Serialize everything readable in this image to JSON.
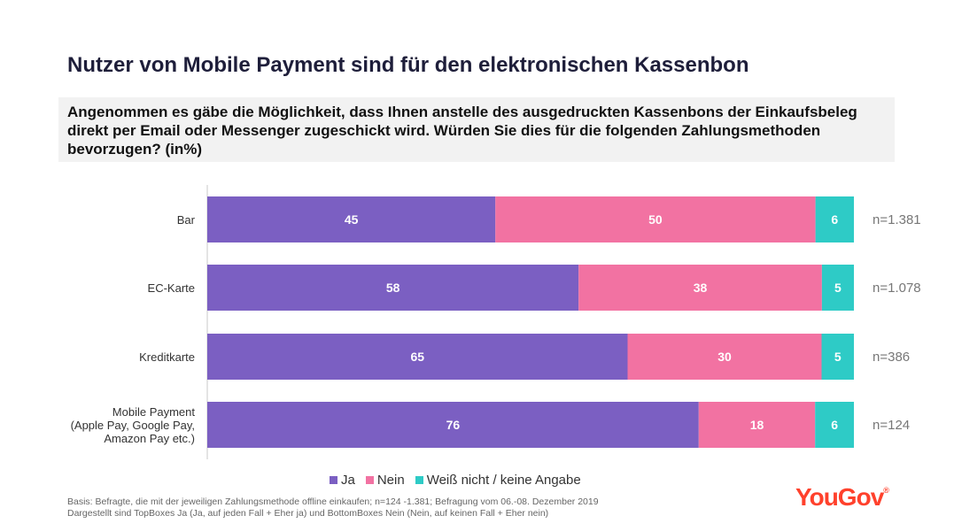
{
  "title": "Nutzer von Mobile Payment sind für den elektronischen Kassenbon",
  "question": "Angenommen es gäbe die Möglichkeit, dass Ihnen anstelle des ausgedruckten Kassenbons der Einkaufsbeleg direkt per Email oder Messenger zugeschickt wird. Würden Sie dies für die folgenden Zahlungsmethoden bevorzugen? (in%)",
  "chart_data": {
    "type": "bar",
    "orientation": "horizontal",
    "stacked": true,
    "categories": [
      [
        "Bar"
      ],
      [
        "EC-Karte"
      ],
      [
        "Kreditkarte"
      ],
      [
        "Mobile Payment",
        "(Apple Pay, Google Pay,",
        "Amazon Pay etc.)"
      ]
    ],
    "series": [
      {
        "name": "Ja",
        "color": "#7b5fc2",
        "values": [
          45,
          58,
          65,
          76
        ]
      },
      {
        "name": "Nein",
        "color": "#f272a2",
        "values": [
          50,
          38,
          30,
          18
        ]
      },
      {
        "name": "Weiß nicht / keine Angabe",
        "color": "#2ecbc6",
        "values": [
          6,
          5,
          5,
          6
        ]
      }
    ],
    "sample_sizes": [
      "n=1.381",
      "n=1.078",
      "n=386",
      "n=124"
    ],
    "xlim": [
      0,
      100
    ],
    "grid": false,
    "legend_position": "bottom"
  },
  "legend": {
    "ja": "Ja",
    "nein": "Nein",
    "weiss_nicht": "Weiß nicht / keine Angabe"
  },
  "footnote": {
    "line1": "Basis: Befragte, die mit der jeweiligen Zahlungsmethode offline einkaufen; n=124 -1.381; Befragung vom 06.-08. Dezember 2019",
    "line2": "Dargestellt sind TopBoxes Ja (Ja, auf jeden Fall + Eher ja) und BottomBoxes Nein (Nein, auf keinen Fall + Eher nein)"
  },
  "logo": {
    "text": "YouGov",
    "mark": "®"
  }
}
